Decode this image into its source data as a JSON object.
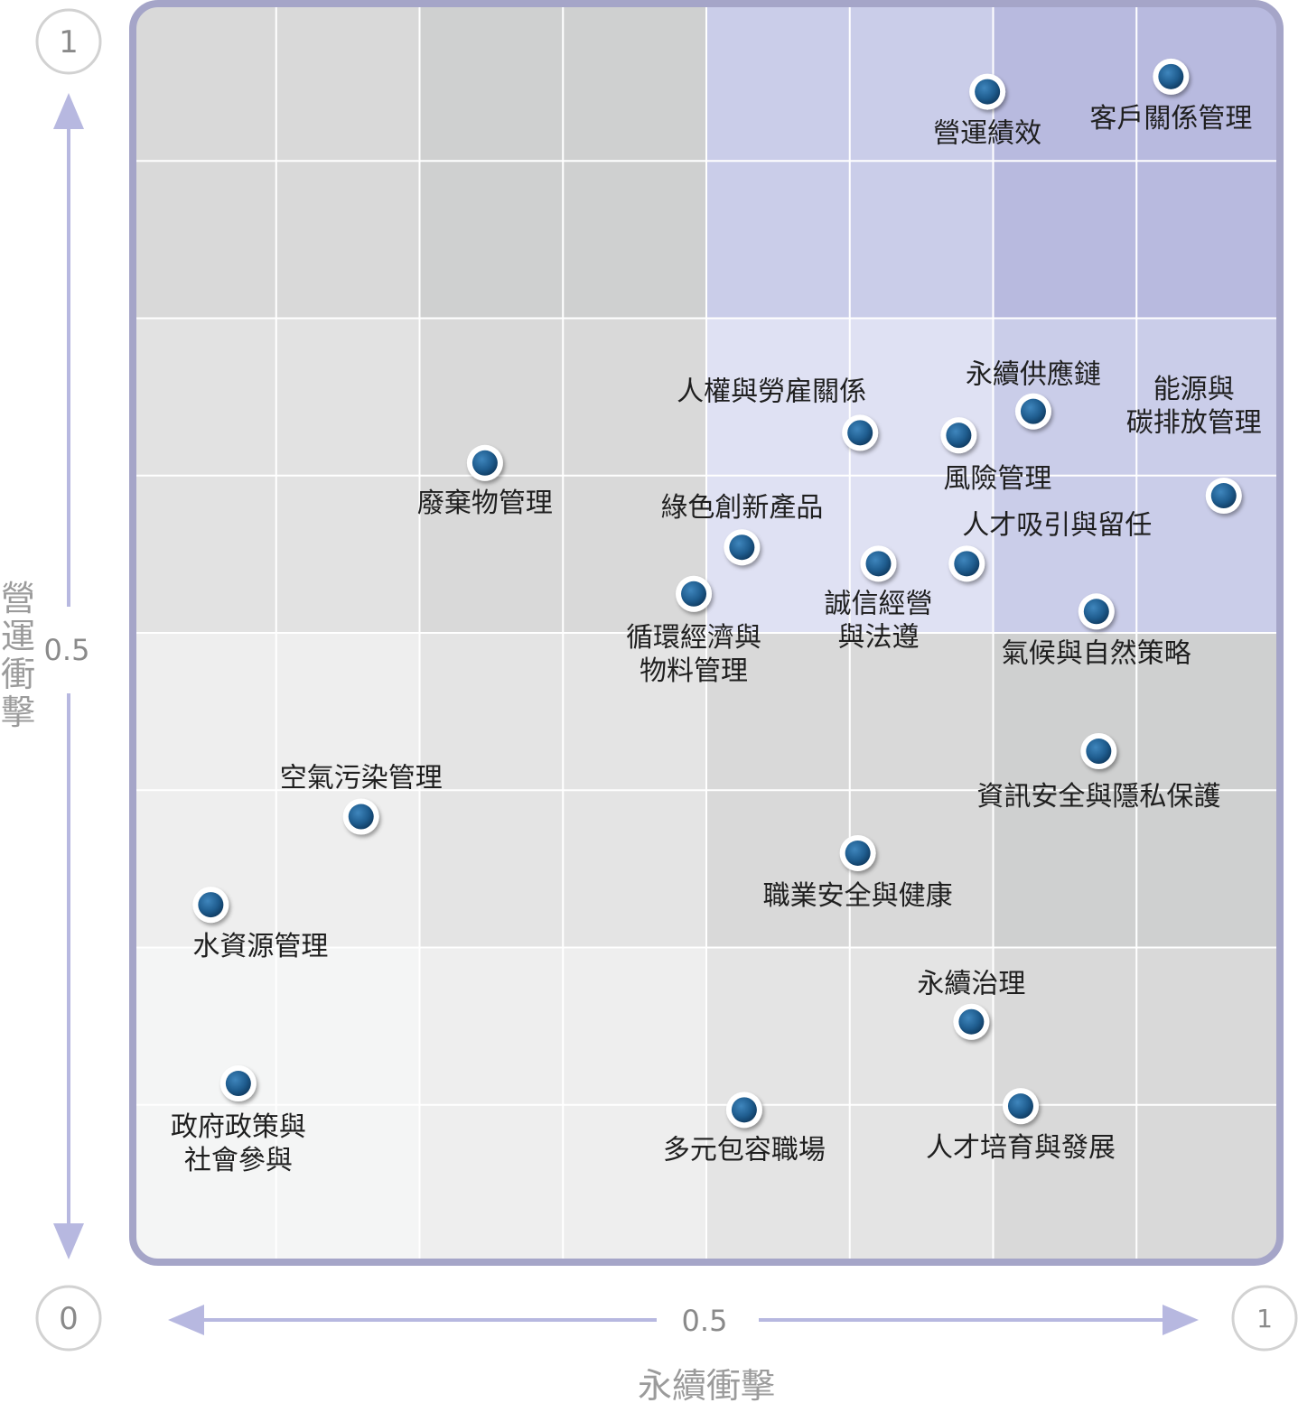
{
  "chart_data": {
    "type": "scatter",
    "xlabel": "永續衝擊",
    "ylabel": "營運衝擊",
    "xlim": [
      0,
      1
    ],
    "ylim": [
      0,
      1
    ],
    "x_ticks": [
      "0.5",
      "1"
    ],
    "y_ticks": [
      "1",
      "0.5"
    ],
    "origin_label": "0",
    "grid": true,
    "colors": {
      "frame": "#a5a5c8",
      "axis_arrow": "#b7b8e0",
      "marker": "#1f5d8f",
      "marker_ring": "#ffffff",
      "label": "#1f1f1f",
      "axis_text": "#9b9b9b"
    },
    "points": [
      {
        "name": "營運績效",
        "x": 0.745,
        "y": 0.93
      },
      {
        "name": "客戶關係管理",
        "x": 0.905,
        "y": 0.942
      },
      {
        "name": "人權與勞雇關係",
        "x": 0.634,
        "y": 0.659
      },
      {
        "name": "永續供應鏈",
        "x": 0.785,
        "y": 0.676
      },
      {
        "name": "風險管理",
        "x": 0.72,
        "y": 0.657
      },
      {
        "name": "能源與\n碳排放管理",
        "x": 0.951,
        "y": 0.609
      },
      {
        "name": "廢棄物管理",
        "x": 0.307,
        "y": 0.635
      },
      {
        "name": "綠色創新產品",
        "x": 0.531,
        "y": 0.568
      },
      {
        "name": "人才吸引與留任",
        "x": 0.727,
        "y": 0.555
      },
      {
        "name": "誠信經營\n與法遵",
        "x": 0.65,
        "y": 0.555
      },
      {
        "name": "循環經濟與\n物料管理",
        "x": 0.489,
        "y": 0.531
      },
      {
        "name": "氣候與自然策略",
        "x": 0.84,
        "y": 0.517
      },
      {
        "name": "資訊安全與隱私保護",
        "x": 0.842,
        "y": 0.406
      },
      {
        "name": "空氣污染管理",
        "x": 0.199,
        "y": 0.354
      },
      {
        "name": "職業安全與健康",
        "x": 0.632,
        "y": 0.325
      },
      {
        "name": "水資源管理",
        "x": 0.068,
        "y": 0.284
      },
      {
        "name": "永續治理",
        "x": 0.731,
        "y": 0.191
      },
      {
        "name": "政府政策與\n社會參與",
        "x": 0.092,
        "y": 0.142
      },
      {
        "name": "多元包容職場",
        "x": 0.533,
        "y": 0.121
      },
      {
        "name": "人才培育與發展",
        "x": 0.774,
        "y": 0.124
      }
    ]
  }
}
